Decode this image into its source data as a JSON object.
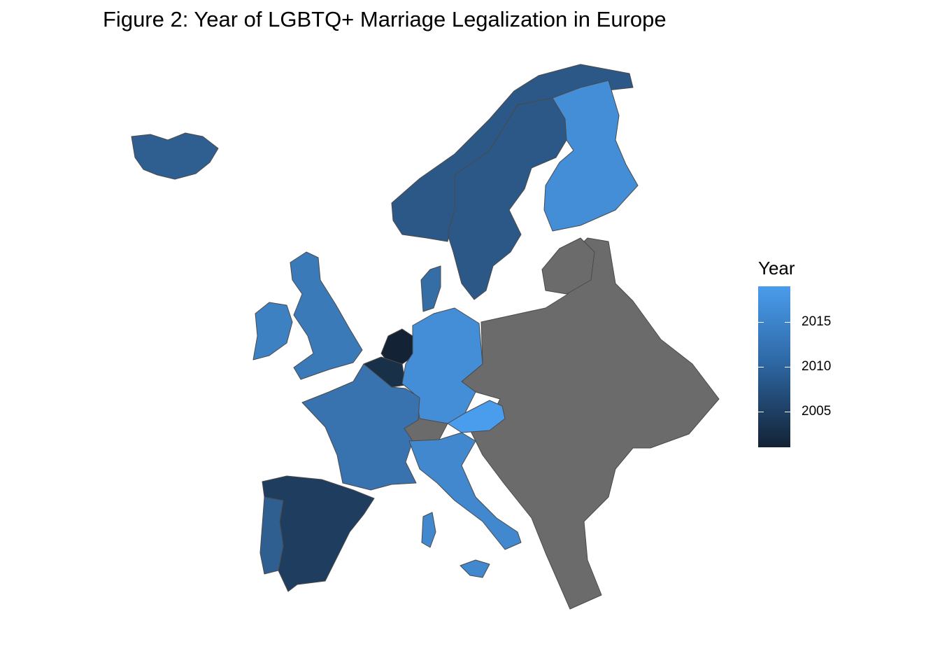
{
  "title": "Figure 2: Year of LGBTQ+ Marriage Legalization in Europe",
  "colors": {
    "no_data": "#6b6b6b",
    "scale_low": "#132235",
    "scale_high": "#4a9cec",
    "border": "#4a4a4a"
  },
  "legend": {
    "title": "Year",
    "ticks": [
      {
        "label": "2015",
        "value": 2015
      },
      {
        "label": "2010",
        "value": 2010
      },
      {
        "label": "2005",
        "value": 2005
      }
    ],
    "range": [
      2001,
      2019
    ]
  },
  "countries": [
    {
      "id": "netherlands",
      "year": 2001
    },
    {
      "id": "belgium",
      "year": 2003
    },
    {
      "id": "spain",
      "year": 2005
    },
    {
      "id": "norway",
      "year": 2009
    },
    {
      "id": "sweden",
      "year": 2009
    },
    {
      "id": "portugal",
      "year": 2010
    },
    {
      "id": "iceland",
      "year": 2010
    },
    {
      "id": "denmark",
      "year": 2012
    },
    {
      "id": "france",
      "year": 2013
    },
    {
      "id": "uk",
      "year": 2014
    },
    {
      "id": "luxembourg",
      "year": 2015
    },
    {
      "id": "ireland",
      "year": 2015
    },
    {
      "id": "italy",
      "year": 2016
    },
    {
      "id": "finland",
      "year": 2017
    },
    {
      "id": "germany",
      "year": 2017
    },
    {
      "id": "austria",
      "year": 2019
    },
    {
      "id": "switzerland",
      "year": null
    },
    {
      "id": "eastern-europe",
      "year": null
    }
  ]
}
